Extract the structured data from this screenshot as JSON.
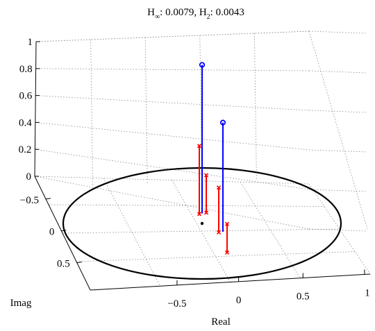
{
  "chart_data": {
    "type": "3d-stem-pole-plot",
    "title": {
      "h_inf_sub": "∞",
      "h_inf_value": "0.0079",
      "h2_sub": "2",
      "h2_value": "0.0043"
    },
    "xlabel": "Real",
    "ylabel": "Imag",
    "xlim": [
      -1,
      1
    ],
    "ylim": [
      -1,
      1
    ],
    "zlim": [
      0,
      1
    ],
    "x_ticks": [
      "−0.5",
      "0",
      "0.5",
      "1"
    ],
    "y_ticks": [
      "−0.5",
      "0",
      "0.5"
    ],
    "z_ticks": [
      "0",
      "0.2",
      "0.4",
      "0.6",
      "0.8",
      "1"
    ],
    "grid": true,
    "unit_circle": true,
    "origin_marker": true,
    "colors": {
      "blue": "#0000ff",
      "red": "#ff0000",
      "circle": "#000000",
      "grid": "#888888"
    },
    "blue_stems": [
      {
        "re": 0.0,
        "im": 0.18,
        "z": 0.83,
        "marker": "circle"
      },
      {
        "re": 0.15,
        "im": -0.15,
        "z": 0.61,
        "marker": "circle"
      }
    ],
    "red_stems": [
      {
        "re": -0.02,
        "im": 0.17,
        "z_top": 0.38,
        "z_bot": 0.0,
        "marker": "x"
      },
      {
        "re": 0.03,
        "im": 0.16,
        "z_top": 0.22,
        "z_bot": 0.01,
        "marker": "x"
      },
      {
        "re": 0.12,
        "im": -0.16,
        "z_top": 0.25,
        "z_bot": 0.0,
        "marker": "x"
      },
      {
        "re": 0.18,
        "im": -0.17,
        "z_top": 0.05,
        "z_bot": -0.11,
        "marker": "x"
      }
    ]
  }
}
